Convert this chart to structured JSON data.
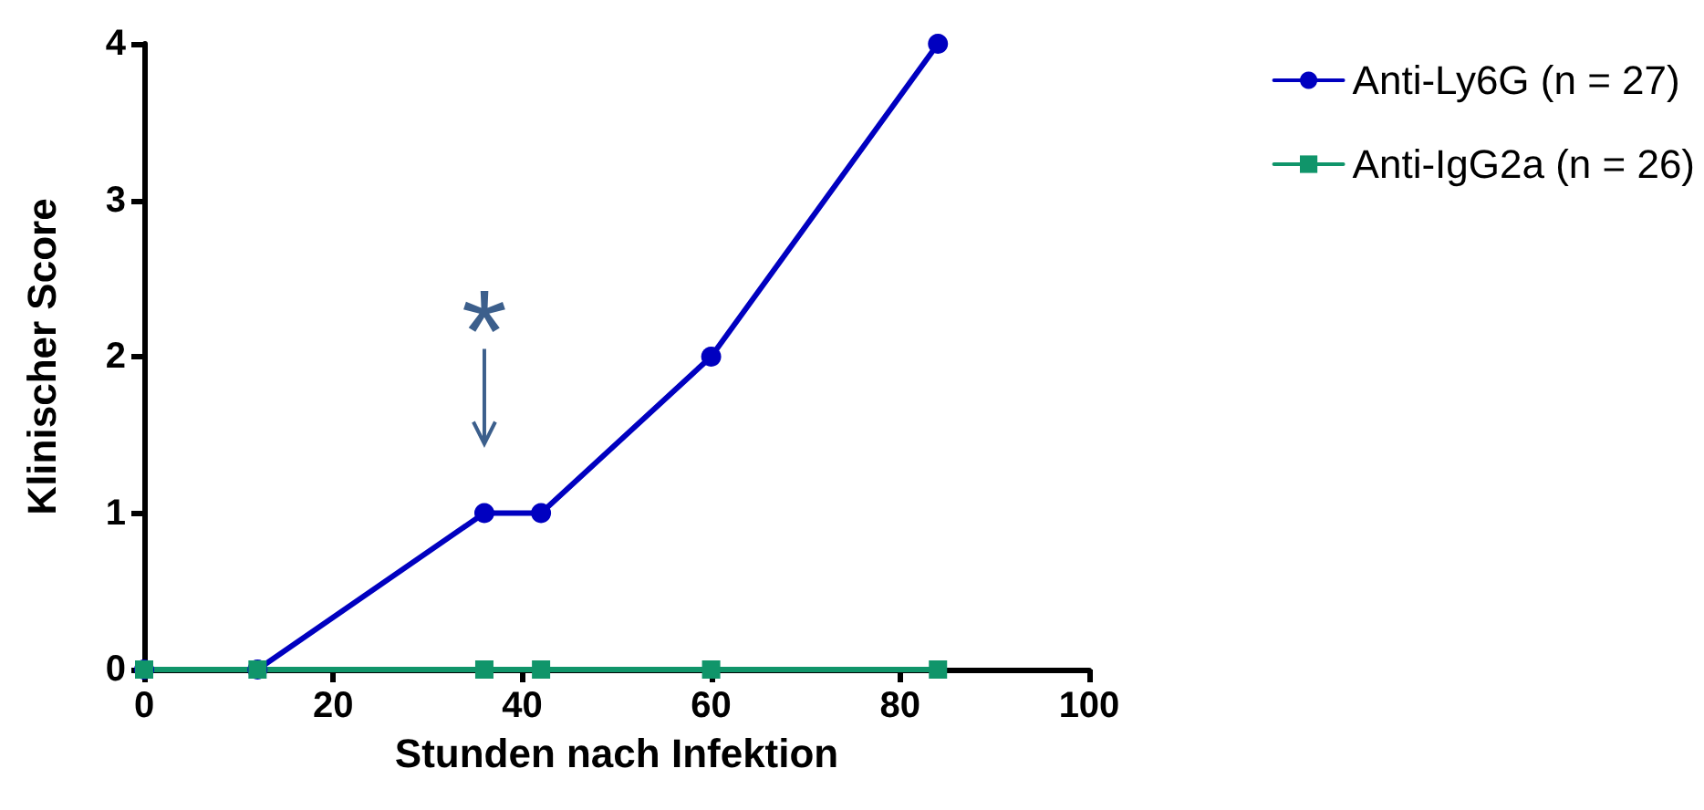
{
  "chart_data": {
    "type": "line",
    "xlabel": "Stunden nach Infektion",
    "ylabel": "Klinischer Score",
    "xlim": [
      0,
      100
    ],
    "xticks": [
      0,
      20,
      40,
      60,
      80,
      100
    ],
    "ylim": [
      0,
      4
    ],
    "yticks": [
      0,
      1,
      2,
      3,
      4
    ],
    "grid": false,
    "legend": "top right",
    "line_style": "solid",
    "series": [
      {
        "name": "Anti-Ly6G (n = 27)",
        "color": "#0000c0",
        "marker": "circle",
        "x": [
          0,
          12,
          36,
          42,
          60,
          84
        ],
        "values": [
          0,
          0,
          1,
          1,
          2,
          4
        ]
      },
      {
        "name": "Anti-IgG2a (n = 26)",
        "color": "#10956a",
        "marker": "square",
        "x": [
          0,
          12,
          36,
          42,
          60,
          84
        ],
        "values": [
          0,
          0,
          0,
          0,
          0,
          0
        ]
      }
    ],
    "annotations": [
      {
        "text": "*",
        "x": 36,
        "y": 1
      }
    ]
  }
}
